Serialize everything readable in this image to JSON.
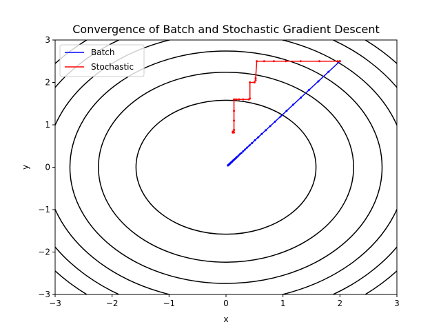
{
  "chart_data": {
    "type": "line",
    "title": "Convergence of Batch and Stochastic Gradient Descent",
    "xlabel": "x",
    "ylabel": "y",
    "xlim": [
      -3,
      3
    ],
    "ylim": [
      -3,
      3
    ],
    "xticks": [
      -3,
      -2,
      -1,
      0,
      1,
      2,
      3
    ],
    "yticks": [
      -3,
      -2,
      -1,
      0,
      1,
      2,
      3
    ],
    "tick_labels_x": [
      "−3",
      "−2",
      "−1",
      "0",
      "1",
      "2",
      "3"
    ],
    "tick_labels_y": [
      "−3",
      "−2",
      "−1",
      "0",
      "1",
      "2",
      "3"
    ],
    "grid": false,
    "legend_position": "top-left",
    "contours": {
      "color": "#000000",
      "radii": [
        1.58,
        2.24,
        2.74,
        3.16,
        3.54,
        3.87
      ]
    },
    "series": [
      {
        "name": "Batch",
        "color": "#0000ff",
        "x": [
          2.0,
          1.8,
          1.62,
          1.458,
          1.312,
          1.181,
          1.063,
          0.957,
          0.861,
          0.775,
          0.697,
          0.628,
          0.565,
          0.508,
          0.458,
          0.412,
          0.371,
          0.334,
          0.3,
          0.27,
          0.243,
          0.219,
          0.197,
          0.177,
          0.16,
          0.144,
          0.129,
          0.116,
          0.105,
          0.094,
          0.085,
          0.076,
          0.069,
          0.062,
          0.056,
          0.05,
          0.045,
          0.041,
          0.037,
          0.033
        ],
        "y": [
          2.5,
          2.25,
          2.025,
          1.823,
          1.64,
          1.476,
          1.329,
          1.196,
          1.076,
          0.969,
          0.872,
          0.785,
          0.706,
          0.636,
          0.572,
          0.515,
          0.463,
          0.417,
          0.375,
          0.338,
          0.304,
          0.274,
          0.246,
          0.222,
          0.2,
          0.18,
          0.162,
          0.146,
          0.131,
          0.118,
          0.106,
          0.095,
          0.086,
          0.077,
          0.07,
          0.063,
          0.056,
          0.051,
          0.046,
          0.041
        ]
      },
      {
        "name": "Stochastic",
        "color": "#ff0000",
        "x": [
          2.0,
          1.96,
          1.64,
          1.31,
          1.05,
          0.84,
          0.67,
          0.54,
          0.52,
          0.52,
          0.5,
          0.42,
          0.42,
          0.4,
          0.3,
          0.23,
          0.18,
          0.14,
          0.14,
          0.14,
          0.14,
          0.14,
          0.12,
          0.12,
          0.12,
          0.12
        ],
        "y": [
          2.5,
          2.5,
          2.5,
          2.5,
          2.5,
          2.5,
          2.5,
          2.5,
          2.1,
          2.05,
          2.0,
          2.0,
          1.62,
          1.6,
          1.6,
          1.6,
          1.6,
          1.6,
          1.33,
          1.1,
          0.88,
          0.82,
          0.82,
          0.84,
          0.82,
          0.82
        ]
      }
    ]
  }
}
